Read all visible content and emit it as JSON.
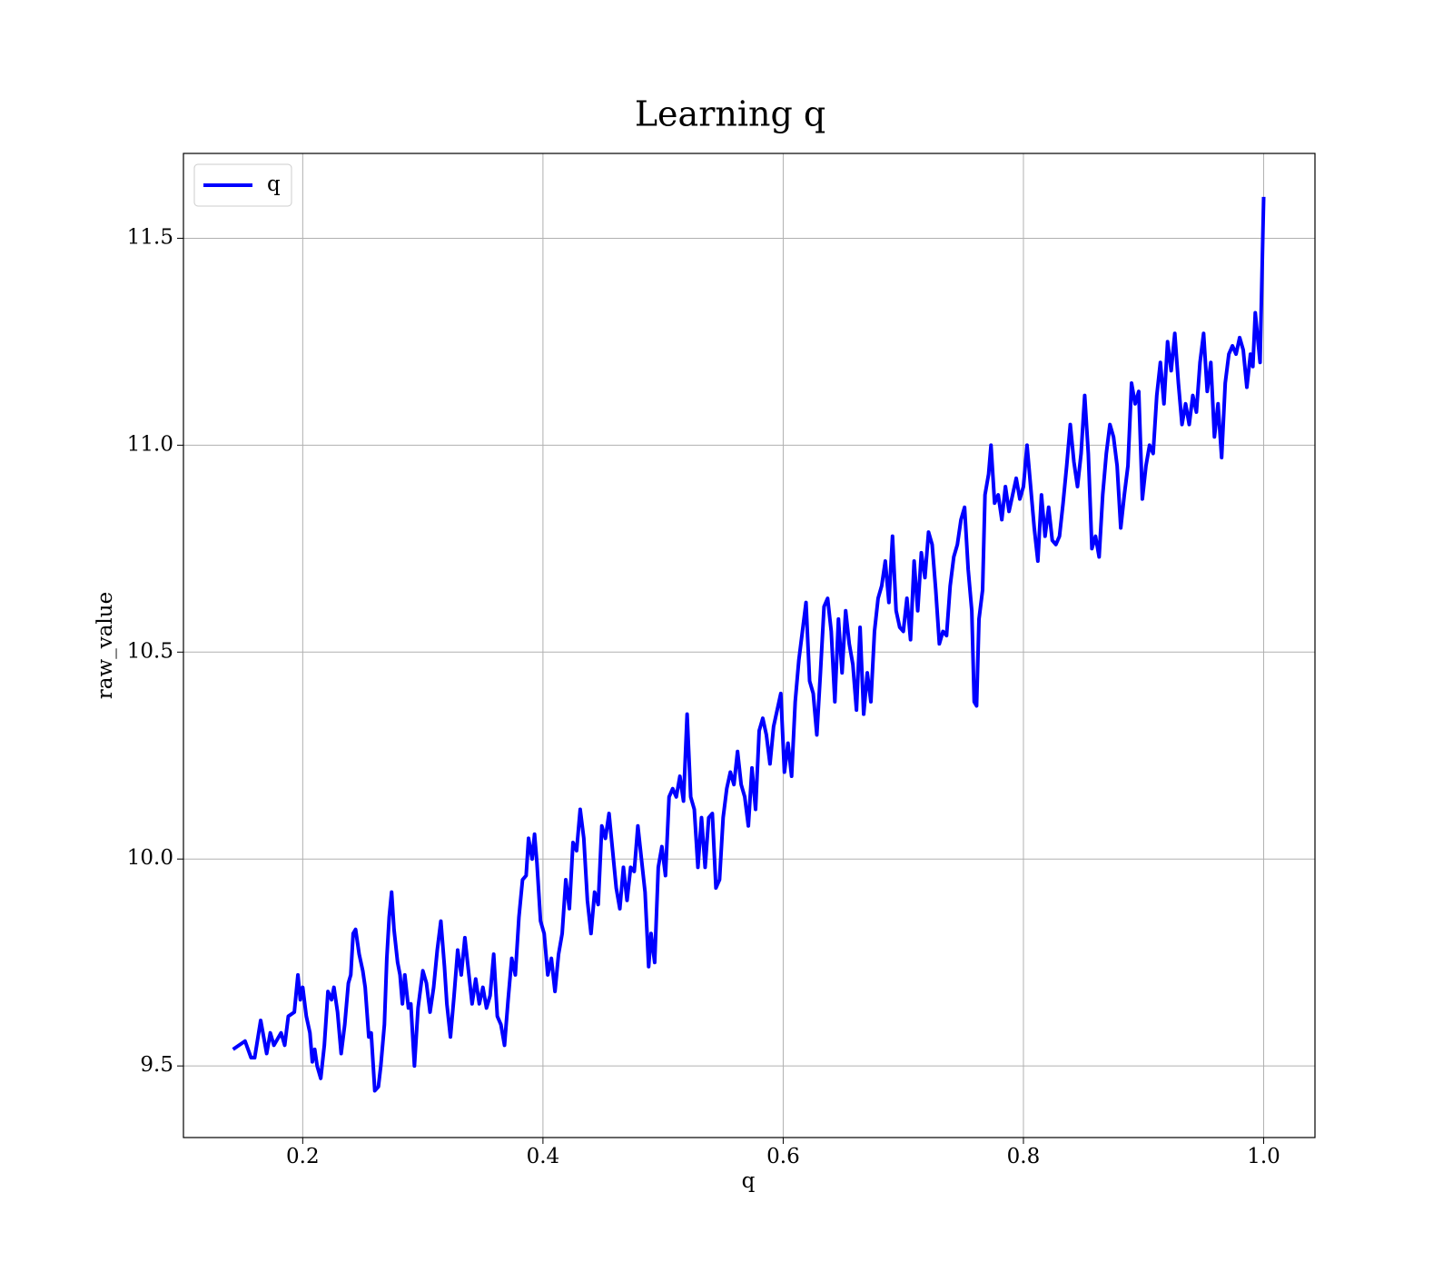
{
  "chart_data": {
    "type": "line",
    "title": "Learning q",
    "x_label": "q",
    "y_label": "raw_value",
    "x": [
      0.142,
      0.152,
      0.157,
      0.16,
      0.165,
      0.17,
      0.173,
      0.176,
      0.182,
      0.185,
      0.188,
      0.193,
      0.196,
      0.198,
      0.2,
      0.203,
      0.206,
      0.208,
      0.21,
      0.212,
      0.215,
      0.218,
      0.221,
      0.224,
      0.226,
      0.229,
      0.232,
      0.235,
      0.238,
      0.24,
      0.242,
      0.244,
      0.247,
      0.25,
      0.252,
      0.255,
      0.257,
      0.26,
      0.263,
      0.265,
      0.268,
      0.27,
      0.272,
      0.274,
      0.276,
      0.279,
      0.281,
      0.283,
      0.285,
      0.288,
      0.29,
      0.293,
      0.296,
      0.3,
      0.303,
      0.306,
      0.309,
      0.312,
      0.315,
      0.318,
      0.32,
      0.323,
      0.326,
      0.329,
      0.332,
      0.335,
      0.338,
      0.341,
      0.344,
      0.347,
      0.35,
      0.353,
      0.356,
      0.359,
      0.362,
      0.365,
      0.368,
      0.371,
      0.374,
      0.377,
      0.38,
      0.383,
      0.386,
      0.388,
      0.391,
      0.393,
      0.395,
      0.398,
      0.401,
      0.404,
      0.407,
      0.41,
      0.413,
      0.416,
      0.419,
      0.422,
      0.425,
      0.428,
      0.431,
      0.434,
      0.437,
      0.44,
      0.443,
      0.446,
      0.449,
      0.452,
      0.455,
      0.458,
      0.461,
      0.464,
      0.467,
      0.47,
      0.473,
      0.476,
      0.479,
      0.482,
      0.485,
      0.488,
      0.49,
      0.493,
      0.496,
      0.499,
      0.502,
      0.505,
      0.508,
      0.511,
      0.514,
      0.517,
      0.52,
      0.523,
      0.526,
      0.529,
      0.532,
      0.535,
      0.538,
      0.541,
      0.544,
      0.547,
      0.55,
      0.553,
      0.556,
      0.559,
      0.562,
      0.565,
      0.568,
      0.571,
      0.574,
      0.577,
      0.58,
      0.583,
      0.586,
      0.589,
      0.592,
      0.595,
      0.598,
      0.601,
      0.604,
      0.607,
      0.61,
      0.613,
      0.616,
      0.619,
      0.622,
      0.625,
      0.628,
      0.631,
      0.634,
      0.637,
      0.64,
      0.643,
      0.646,
      0.649,
      0.652,
      0.655,
      0.658,
      0.661,
      0.664,
      0.667,
      0.67,
      0.673,
      0.676,
      0.679,
      0.682,
      0.685,
      0.688,
      0.691,
      0.694,
      0.697,
      0.7,
      0.703,
      0.706,
      0.709,
      0.712,
      0.715,
      0.718,
      0.721,
      0.724,
      0.727,
      0.73,
      0.733,
      0.736,
      0.739,
      0.742,
      0.745,
      0.748,
      0.751,
      0.754,
      0.757,
      0.759,
      0.761,
      0.763,
      0.766,
      0.768,
      0.771,
      0.773,
      0.776,
      0.779,
      0.782,
      0.785,
      0.788,
      0.791,
      0.794,
      0.797,
      0.8,
      0.803,
      0.806,
      0.809,
      0.812,
      0.815,
      0.818,
      0.821,
      0.824,
      0.827,
      0.83,
      0.833,
      0.836,
      0.839,
      0.842,
      0.845,
      0.848,
      0.851,
      0.854,
      0.857,
      0.86,
      0.863,
      0.866,
      0.869,
      0.872,
      0.875,
      0.878,
      0.881,
      0.884,
      0.887,
      0.89,
      0.893,
      0.896,
      0.899,
      0.902,
      0.905,
      0.908,
      0.911,
      0.914,
      0.917,
      0.92,
      0.923,
      0.926,
      0.929,
      0.932,
      0.935,
      0.938,
      0.941,
      0.944,
      0.947,
      0.95,
      0.953,
      0.956,
      0.959,
      0.962,
      0.965,
      0.968,
      0.971,
      0.974,
      0.977,
      0.98,
      0.983,
      0.986,
      0.989,
      0.991,
      0.993,
      0.997,
      1.0
    ],
    "series": [
      {
        "name": "q",
        "color": "#0000ff",
        "values": [
          9.54,
          9.56,
          9.52,
          9.52,
          9.61,
          9.53,
          9.58,
          9.55,
          9.58,
          9.55,
          9.62,
          9.63,
          9.72,
          9.66,
          9.69,
          9.62,
          9.58,
          9.51,
          9.54,
          9.5,
          9.47,
          9.55,
          9.68,
          9.66,
          9.69,
          9.63,
          9.53,
          9.6,
          9.7,
          9.72,
          9.82,
          9.83,
          9.77,
          9.73,
          9.69,
          9.57,
          9.58,
          9.44,
          9.45,
          9.5,
          9.6,
          9.76,
          9.86,
          9.92,
          9.83,
          9.75,
          9.72,
          9.65,
          9.72,
          9.64,
          9.65,
          9.5,
          9.64,
          9.73,
          9.7,
          9.63,
          9.69,
          9.78,
          9.85,
          9.74,
          9.65,
          9.57,
          9.67,
          9.78,
          9.72,
          9.81,
          9.73,
          9.65,
          9.71,
          9.65,
          9.69,
          9.64,
          9.67,
          9.77,
          9.62,
          9.6,
          9.55,
          9.66,
          9.76,
          9.72,
          9.86,
          9.95,
          9.96,
          10.05,
          10.0,
          10.06,
          9.99,
          9.85,
          9.82,
          9.72,
          9.76,
          9.68,
          9.77,
          9.82,
          9.95,
          9.88,
          10.04,
          10.02,
          10.12,
          10.05,
          9.9,
          9.82,
          9.92,
          9.89,
          10.08,
          10.05,
          10.11,
          10.02,
          9.93,
          9.88,
          9.98,
          9.9,
          9.98,
          9.97,
          10.08,
          10.0,
          9.92,
          9.74,
          9.82,
          9.75,
          9.98,
          10.03,
          9.96,
          10.15,
          10.17,
          10.15,
          10.2,
          10.14,
          10.35,
          10.15,
          10.12,
          9.98,
          10.1,
          9.98,
          10.1,
          10.11,
          9.93,
          9.95,
          10.1,
          10.17,
          10.21,
          10.18,
          10.26,
          10.18,
          10.15,
          10.08,
          10.22,
          10.12,
          10.31,
          10.34,
          10.3,
          10.23,
          10.32,
          10.36,
          10.4,
          10.21,
          10.28,
          10.2,
          10.38,
          10.48,
          10.55,
          10.62,
          10.43,
          10.4,
          10.3,
          10.45,
          10.61,
          10.63,
          10.55,
          10.38,
          10.58,
          10.45,
          10.6,
          10.52,
          10.47,
          10.36,
          10.56,
          10.35,
          10.45,
          10.38,
          10.55,
          10.63,
          10.66,
          10.72,
          10.62,
          10.78,
          10.6,
          10.56,
          10.55,
          10.63,
          10.53,
          10.72,
          10.6,
          10.74,
          10.68,
          10.79,
          10.76,
          10.65,
          10.52,
          10.55,
          10.54,
          10.66,
          10.73,
          10.76,
          10.82,
          10.85,
          10.7,
          10.6,
          10.38,
          10.37,
          10.58,
          10.65,
          10.88,
          10.93,
          11.0,
          10.86,
          10.88,
          10.82,
          10.9,
          10.84,
          10.88,
          10.92,
          10.87,
          10.9,
          11.0,
          10.9,
          10.8,
          10.72,
          10.88,
          10.78,
          10.85,
          10.77,
          10.76,
          10.78,
          10.86,
          10.95,
          11.05,
          10.96,
          10.9,
          10.98,
          11.12,
          10.98,
          10.75,
          10.78,
          10.73,
          10.88,
          10.98,
          11.05,
          11.02,
          10.95,
          10.8,
          10.88,
          10.95,
          11.15,
          11.1,
          11.13,
          10.87,
          10.95,
          11.0,
          10.98,
          11.12,
          11.2,
          11.1,
          11.25,
          11.18,
          11.27,
          11.15,
          11.05,
          11.1,
          11.05,
          11.12,
          11.08,
          11.2,
          11.27,
          11.13,
          11.2,
          11.02,
          11.1,
          10.97,
          11.15,
          11.22,
          11.24,
          11.22,
          11.26,
          11.23,
          11.14,
          11.22,
          11.19,
          11.32,
          11.2,
          11.6
        ]
      }
    ],
    "xlim": [
      0.1007,
      1.0427
    ],
    "ylim": [
      9.327,
      11.705
    ],
    "xticks": [
      0.2,
      0.4,
      0.6,
      0.8,
      {
        "value": 1.0,
        "label": "1.0"
      }
    ],
    "yticks": [
      9.5,
      {
        "value": 10,
        "label": "10.0"
      },
      10.5,
      {
        "value": 11,
        "label": "11.0"
      },
      11.5
    ],
    "grid": true,
    "legend": "upper left"
  }
}
